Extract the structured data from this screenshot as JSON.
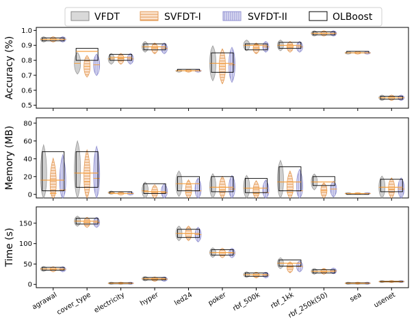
{
  "legend": {
    "entries": [
      {
        "name": "VFDT",
        "fill": "#d9d9d9",
        "stroke": "#8a8a8a",
        "pattern": "solid"
      },
      {
        "name": "SVFDT-I",
        "fill": "#fbe3cf",
        "stroke": "#e39a55",
        "pattern": "hstripe"
      },
      {
        "name": "SVFDT-II",
        "fill": "#ddddf3",
        "stroke": "#8f8fd0",
        "pattern": "vstripe"
      },
      {
        "name": "OLBoost",
        "fill": "#ffffff",
        "stroke": "#000000",
        "pattern": "box"
      }
    ]
  },
  "colors": {
    "median": "#f5a142",
    "box": "#000000",
    "axis": "#000000"
  },
  "chart_data": [
    {
      "type": "violin",
      "ylabel": "Accuracy (%)",
      "ylim": [
        0.48,
        1.02
      ],
      "yticks": [
        "0.5",
        "0.6",
        "0.7",
        "0.8",
        "0.9",
        "1.0"
      ],
      "ytick_values": [
        0.5,
        0.6,
        0.7,
        0.8,
        0.9,
        1.0
      ],
      "categories": [
        "agrawal",
        "cover_type",
        "electricity",
        "hyper",
        "led24",
        "poker",
        "rbf_500k",
        "rbf_1kk",
        "rbf_250k(50)",
        "sea",
        "usenet"
      ],
      "series": [
        {
          "name": "VFDT",
          "values": [
            0.94,
            0.78,
            0.81,
            0.89,
            0.73,
            0.78,
            0.9,
            0.9,
            0.98,
            0.85,
            0.55
          ]
        },
        {
          "name": "SVFDT-I",
          "values": [
            0.94,
            0.76,
            0.81,
            0.88,
            0.73,
            0.76,
            0.88,
            0.89,
            0.98,
            0.85,
            0.55
          ]
        },
        {
          "name": "SVFDT-II",
          "values": [
            0.94,
            0.77,
            0.81,
            0.88,
            0.73,
            0.77,
            0.89,
            0.89,
            0.98,
            0.85,
            0.55
          ]
        }
      ],
      "olboost_box": [
        {
          "q1": 0.93,
          "median": 0.94,
          "q3": 0.95
        },
        {
          "q1": 0.8,
          "median": 0.86,
          "q3": 0.88
        },
        {
          "q1": 0.8,
          "median": 0.82,
          "q3": 0.84
        },
        {
          "q1": 0.87,
          "median": 0.89,
          "q3": 0.91
        },
        {
          "q1": 0.73,
          "median": 0.73,
          "q3": 0.74
        },
        {
          "q1": 0.72,
          "median": 0.78,
          "q3": 0.85
        },
        {
          "q1": 0.87,
          "median": 0.9,
          "q3": 0.91
        },
        {
          "q1": 0.88,
          "median": 0.9,
          "q3": 0.92
        },
        {
          "q1": 0.97,
          "median": 0.98,
          "q3": 0.99
        },
        {
          "q1": 0.85,
          "median": 0.85,
          "q3": 0.86
        },
        {
          "q1": 0.54,
          "median": 0.55,
          "q3": 0.56
        }
      ],
      "grid": false
    },
    {
      "type": "violin",
      "ylabel": "Memory (MB)",
      "ylim": [
        -4,
        86
      ],
      "yticks": [
        "0",
        "20",
        "40",
        "60",
        "80"
      ],
      "ytick_values": [
        0,
        20,
        40,
        60,
        80
      ],
      "categories": [
        "agrawal",
        "cover_type",
        "electricity",
        "hyper",
        "led24",
        "poker",
        "rbf_500k",
        "rbf_1kk",
        "rbf_250k(50)",
        "sea",
        "usenet"
      ],
      "series": [
        {
          "name": "VFDT",
          "values": [
            16,
            24,
            2,
            4,
            12,
            8,
            7,
            14,
            14,
            1,
            8
          ]
        },
        {
          "name": "SVFDT-I",
          "values": [
            1,
            14,
            1,
            1,
            2,
            5,
            1,
            2,
            4,
            1,
            6
          ]
        },
        {
          "name": "SVFDT-II",
          "values": [
            5,
            18,
            1,
            2,
            4,
            6,
            2,
            4,
            6,
            1,
            6
          ]
        }
      ],
      "olboost_box": [
        {
          "q1": 4,
          "median": 16,
          "q3": 48
        },
        {
          "q1": 8,
          "median": 24,
          "q3": 48
        },
        {
          "q1": 1,
          "median": 1,
          "q3": 3
        },
        {
          "q1": 1,
          "median": 3,
          "q3": 12
        },
        {
          "q1": 4,
          "median": 12,
          "q3": 20
        },
        {
          "q1": 3,
          "median": 8,
          "q3": 20
        },
        {
          "q1": 2,
          "median": 7,
          "q3": 18
        },
        {
          "q1": 4,
          "median": 14,
          "q3": 31
        },
        {
          "q1": 10,
          "median": 14,
          "q3": 20
        },
        {
          "q1": 0,
          "median": 1,
          "q3": 1
        },
        {
          "q1": 3,
          "median": 8,
          "q3": 17
        }
      ],
      "grid": false
    },
    {
      "type": "violin",
      "ylabel": "Time (s)",
      "ylim": [
        -8,
        190
      ],
      "yticks": [
        "0",
        "50",
        "100",
        "150"
      ],
      "ytick_values": [
        0,
        50,
        100,
        150
      ],
      "categories": [
        "agrawal",
        "cover_type",
        "electricity",
        "hyper",
        "led24",
        "poker",
        "rbf_500k",
        "rbf_1kk",
        "rbf_250k(50)",
        "sea",
        "usenet"
      ],
      "series": [
        {
          "name": "VFDT",
          "values": [
            38,
            155,
            3,
            14,
            125,
            78,
            24,
            52,
            32,
            3,
            7
          ]
        },
        {
          "name": "SVFDT-I",
          "values": [
            37,
            152,
            3,
            13,
            125,
            77,
            23,
            42,
            32,
            3,
            7
          ]
        },
        {
          "name": "SVFDT-II",
          "values": [
            37,
            152,
            3,
            13,
            122,
            77,
            23,
            44,
            33,
            3,
            7
          ]
        }
      ],
      "olboost_box": [
        {
          "q1": 35,
          "median": 38,
          "q3": 42
        },
        {
          "q1": 148,
          "median": 155,
          "q3": 162
        },
        {
          "q1": 2,
          "median": 3,
          "q3": 4
        },
        {
          "q1": 11,
          "median": 14,
          "q3": 17
        },
        {
          "q1": 115,
          "median": 125,
          "q3": 135
        },
        {
          "q1": 72,
          "median": 78,
          "q3": 85
        },
        {
          "q1": 20,
          "median": 24,
          "q3": 28
        },
        {
          "q1": 45,
          "median": 52,
          "q3": 60
        },
        {
          "q1": 28,
          "median": 32,
          "q3": 36
        },
        {
          "q1": 2,
          "median": 3,
          "q3": 4
        },
        {
          "q1": 6,
          "median": 7,
          "q3": 8
        }
      ],
      "grid": false
    }
  ]
}
